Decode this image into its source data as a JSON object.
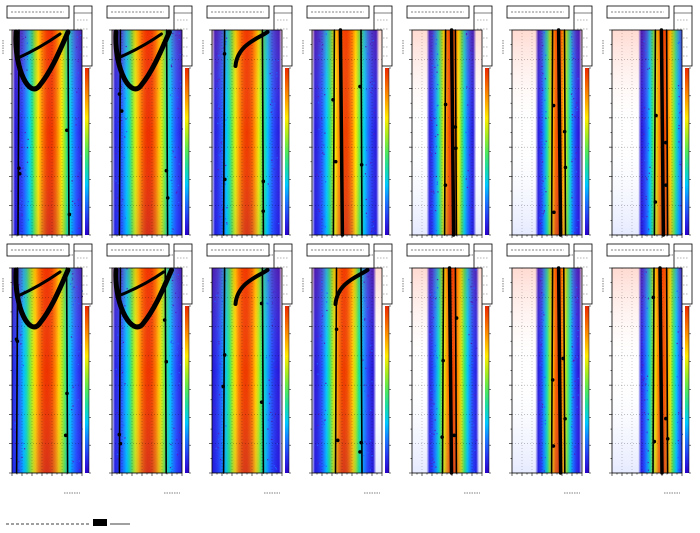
{
  "chart_data": [
    {
      "type": "heatmap",
      "cell": "r0c0",
      "density_center": 0.54,
      "density_width": 0.33,
      "color_shift": 0.18,
      "overlay": "arc",
      "overlay_offset": 0.0,
      "lines": [
        0.1,
        0.8
      ]
    },
    {
      "type": "heatmap",
      "cell": "r0c1",
      "density_center": 0.52,
      "density_width": 0.34,
      "color_shift": 0.2,
      "overlay": "arc",
      "overlay_offset": 0.02,
      "lines": [
        0.12,
        0.78
      ]
    },
    {
      "type": "heatmap",
      "cell": "r0c2",
      "density_center": 0.5,
      "density_width": 0.32,
      "color_shift": 0.12,
      "overlay": "hook",
      "overlay_offset": 0.0,
      "lines": [
        0.18,
        0.72
      ]
    },
    {
      "type": "heatmap",
      "cell": "r0c3",
      "density_center": 0.48,
      "density_width": 0.3,
      "color_shift": 0.08,
      "overlay": "bars",
      "overlay_offset": 0.0,
      "lines": [
        0.32,
        0.7
      ]
    },
    {
      "type": "heatmap",
      "cell": "r0c4",
      "density_center": 0.56,
      "density_width": 0.22,
      "color_shift": 0.05,
      "overlay": "bars",
      "overlay_offset": 0.0,
      "lines": [
        0.48,
        0.62
      ]
    },
    {
      "type": "heatmap",
      "cell": "r0c5",
      "density_center": 0.66,
      "density_width": 0.2,
      "color_shift": 0.02,
      "overlay": "bars",
      "overlay_offset": 0.0,
      "lines": [
        0.58,
        0.75
      ]
    },
    {
      "type": "heatmap",
      "cell": "r0c6",
      "density_center": 0.74,
      "density_width": 0.22,
      "color_shift": 0.02,
      "overlay": "bars",
      "overlay_offset": 0.0,
      "lines": [
        0.62,
        0.78
      ]
    },
    {
      "type": "heatmap",
      "cell": "r1c0",
      "density_center": 0.5,
      "density_width": 0.36,
      "color_shift": 0.18,
      "overlay": "arc",
      "overlay_offset": 0.0,
      "lines": [
        0.08,
        0.78
      ]
    },
    {
      "type": "heatmap",
      "cell": "r1c1",
      "density_center": 0.52,
      "density_width": 0.34,
      "color_shift": 0.16,
      "overlay": "arc",
      "overlay_offset": 0.05,
      "lines": [
        0.12,
        0.76
      ]
    },
    {
      "type": "heatmap",
      "cell": "r1c2",
      "density_center": 0.48,
      "density_width": 0.32,
      "color_shift": 0.12,
      "overlay": "hook",
      "overlay_offset": 0.0,
      "lines": [
        0.18,
        0.72
      ]
    },
    {
      "type": "heatmap",
      "cell": "r1c3",
      "density_center": 0.46,
      "density_width": 0.28,
      "color_shift": 0.1,
      "overlay": "hook",
      "overlay_offset": 0.0,
      "lines": [
        0.35,
        0.7
      ]
    },
    {
      "type": "heatmap",
      "cell": "r1c4",
      "density_center": 0.58,
      "density_width": 0.24,
      "color_shift": 0.04,
      "overlay": "bars",
      "overlay_offset": 0.0,
      "lines": [
        0.45,
        0.62
      ]
    },
    {
      "type": "heatmap",
      "cell": "r1c5",
      "density_center": 0.66,
      "density_width": 0.2,
      "color_shift": 0.02,
      "overlay": "bars",
      "overlay_offset": 0.0,
      "lines": [
        0.58,
        0.74
      ]
    },
    {
      "type": "heatmap",
      "cell": "r1c6",
      "density_center": 0.72,
      "density_width": 0.22,
      "color_shift": 0.02,
      "overlay": "bars",
      "overlay_offset": 0.0,
      "lines": [
        0.6,
        0.78
      ]
    }
  ]
}
